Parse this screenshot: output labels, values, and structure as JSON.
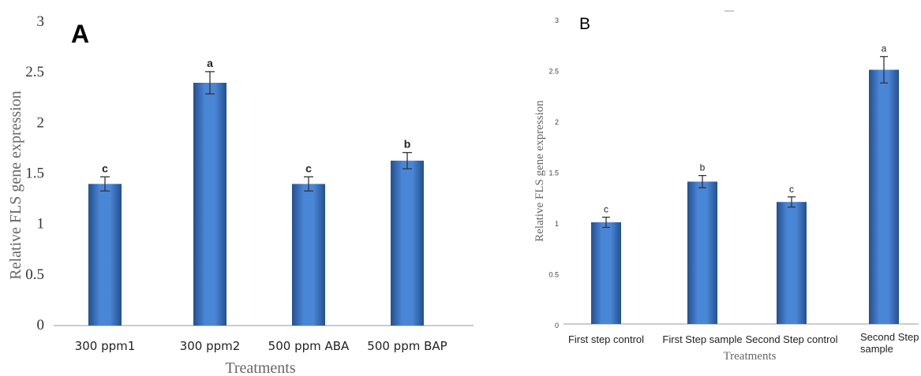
{
  "chart_data": [
    {
      "type": "bar",
      "panel_label": "A",
      "categories": [
        "300 ppm1",
        "300 ppm2",
        "500 ppm ABA",
        "500 ppm BAP"
      ],
      "values": [
        1.4,
        2.4,
        1.4,
        1.63
      ],
      "errors": [
        0.07,
        0.11,
        0.07,
        0.08
      ],
      "significance_letters": [
        "c",
        "a",
        "c",
        "b"
      ],
      "xlabel": "Treatments",
      "ylabel": "Relative FLS gene expression",
      "ylim": [
        0,
        3
      ],
      "yticks": [
        "0",
        "0.5",
        "1",
        "1.5",
        "2",
        "2.5",
        "3"
      ],
      "grid": false,
      "bar_color": "#3f77c4"
    },
    {
      "type": "bar",
      "panel_label": "B",
      "categories": [
        "First step control",
        "First Step sample",
        "Second Step control",
        [
          "Second Step",
          "sample"
        ]
      ],
      "values": [
        1.0,
        1.4,
        1.2,
        2.5
      ],
      "errors": [
        0.05,
        0.06,
        0.05,
        0.13
      ],
      "significance_letters": [
        "c",
        "b",
        "c",
        "a"
      ],
      "xlabel": "Treatments",
      "ylabel": "Relative FLS gene expression",
      "ylim": [
        0,
        3
      ],
      "yticks": [
        "0",
        "0.5",
        "1",
        "1.5",
        "2",
        "2.5",
        "3"
      ],
      "grid": false,
      "bar_color": "#3f77c4"
    }
  ]
}
